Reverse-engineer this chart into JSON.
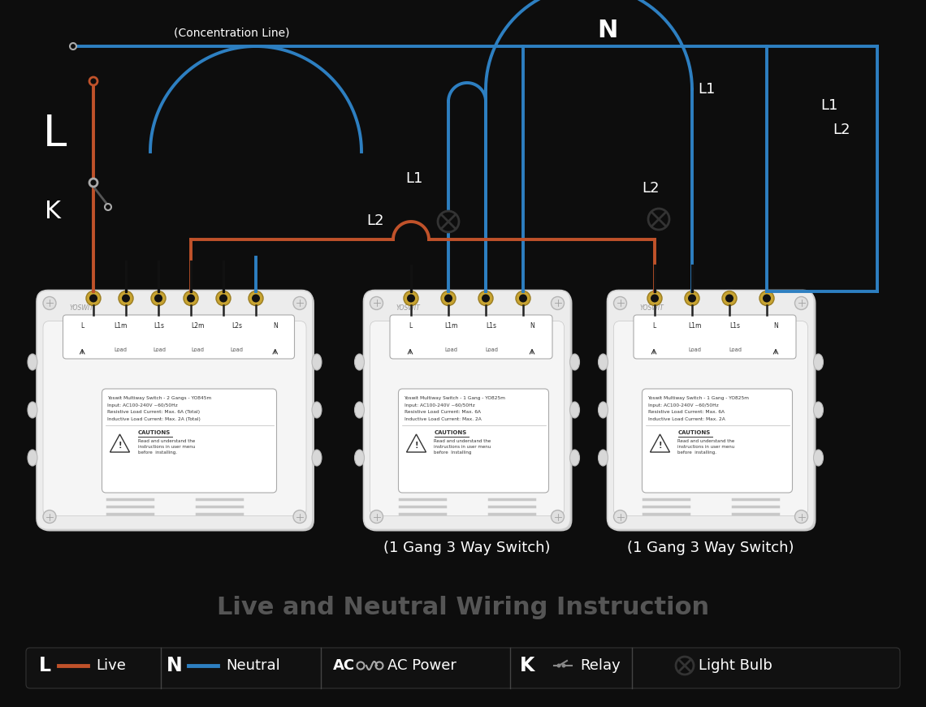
{
  "bg_color": "#0d0d0d",
  "title": "Live and Neutral Wiring Instruction",
  "title_color": "#555555",
  "title_fontsize": 22,
  "live_color": "#c0522a",
  "neutral_color": "#2d7fc1",
  "black_wire": "#111111",
  "switch_fill": "#ececec",
  "switch_edge": "#cccccc",
  "switch2_label": "(1 Gang 3 Way Switch)",
  "switch3_label": "(1 Gang 3 Way Switch)",
  "conc_line_text": "(Concentration Line)",
  "N_label": "N",
  "L_label": "L",
  "K_label": "K"
}
